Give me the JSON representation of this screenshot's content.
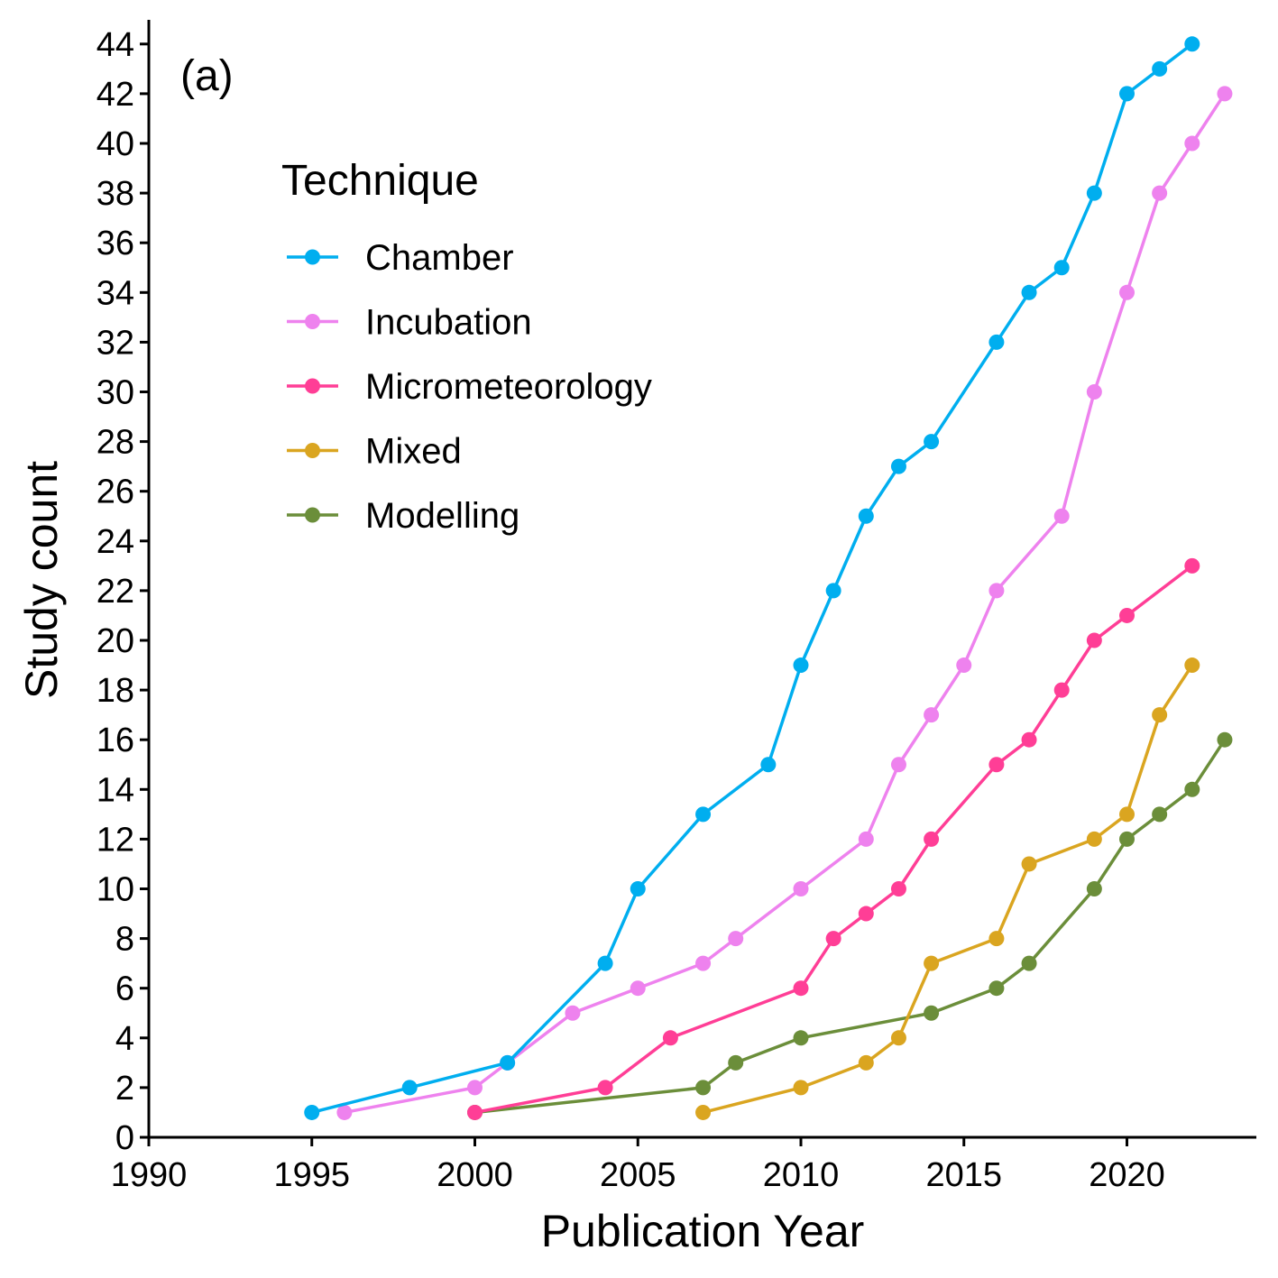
{
  "chart_data": {
    "type": "line",
    "panel_label": "(a)",
    "xlabel": "Publication Year",
    "ylabel": "Study count",
    "xlim": [
      1990,
      2024
    ],
    "ylim": [
      0,
      45
    ],
    "x_ticks": [
      1990,
      1995,
      2000,
      2005,
      2010,
      2015,
      2020
    ],
    "y_ticks": [
      0,
      2,
      4,
      6,
      8,
      10,
      12,
      14,
      16,
      18,
      20,
      22,
      24,
      26,
      28,
      30,
      32,
      34,
      36,
      38,
      40,
      42,
      44
    ],
    "grid": false,
    "legend": {
      "title": "Technique",
      "position": "top-left"
    },
    "series": [
      {
        "name": "Chamber",
        "color": "#00AEEF",
        "points": [
          [
            1995,
            1
          ],
          [
            1998,
            2
          ],
          [
            2001,
            3
          ],
          [
            2004,
            7
          ],
          [
            2005,
            10
          ],
          [
            2007,
            13
          ],
          [
            2009,
            15
          ],
          [
            2010,
            19
          ],
          [
            2011,
            22
          ],
          [
            2012,
            25
          ],
          [
            2013,
            27
          ],
          [
            2014,
            28
          ],
          [
            2016,
            32
          ],
          [
            2017,
            34
          ],
          [
            2018,
            35
          ],
          [
            2019,
            38
          ],
          [
            2020,
            42
          ],
          [
            2021,
            43
          ],
          [
            2022,
            44
          ]
        ]
      },
      {
        "name": "Incubation",
        "color": "#EE82EE",
        "points": [
          [
            1996,
            1
          ],
          [
            2000,
            2
          ],
          [
            2001,
            3
          ],
          [
            2003,
            5
          ],
          [
            2005,
            6
          ],
          [
            2007,
            7
          ],
          [
            2008,
            8
          ],
          [
            2010,
            10
          ],
          [
            2012,
            12
          ],
          [
            2013,
            15
          ],
          [
            2014,
            17
          ],
          [
            2015,
            19
          ],
          [
            2016,
            22
          ],
          [
            2018,
            25
          ],
          [
            2019,
            30
          ],
          [
            2020,
            34
          ],
          [
            2021,
            38
          ],
          [
            2022,
            40
          ],
          [
            2023,
            42
          ]
        ]
      },
      {
        "name": "Micrometeorology",
        "color": "#FF3E96",
        "points": [
          [
            2000,
            1
          ],
          [
            2004,
            2
          ],
          [
            2006,
            4
          ],
          [
            2010,
            6
          ],
          [
            2011,
            8
          ],
          [
            2012,
            9
          ],
          [
            2013,
            10
          ],
          [
            2014,
            12
          ],
          [
            2016,
            15
          ],
          [
            2017,
            16
          ],
          [
            2018,
            18
          ],
          [
            2019,
            20
          ],
          [
            2020,
            21
          ],
          [
            2022,
            23
          ]
        ]
      },
      {
        "name": "Mixed",
        "color": "#DAA520",
        "points": [
          [
            2007,
            1
          ],
          [
            2010,
            2
          ],
          [
            2012,
            3
          ],
          [
            2013,
            4
          ],
          [
            2014,
            7
          ],
          [
            2016,
            8
          ],
          [
            2017,
            11
          ],
          [
            2019,
            12
          ],
          [
            2020,
            13
          ],
          [
            2021,
            17
          ],
          [
            2022,
            19
          ]
        ]
      },
      {
        "name": "Modelling",
        "color": "#6B8E3A",
        "points": [
          [
            2000,
            1
          ],
          [
            2007,
            2
          ],
          [
            2008,
            3
          ],
          [
            2010,
            4
          ],
          [
            2014,
            5
          ],
          [
            2016,
            6
          ],
          [
            2017,
            7
          ],
          [
            2019,
            10
          ],
          [
            2020,
            12
          ],
          [
            2021,
            13
          ],
          [
            2022,
            14
          ],
          [
            2023,
            16
          ]
        ]
      }
    ]
  }
}
